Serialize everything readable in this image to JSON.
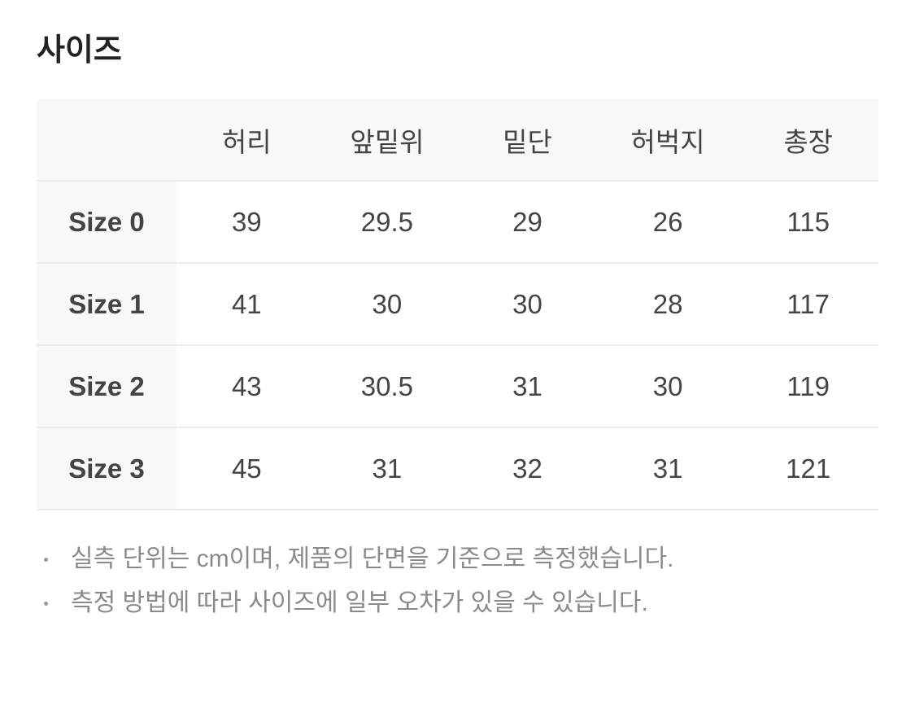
{
  "title": "사이즈",
  "table": {
    "headers": [
      "",
      "허리",
      "앞밑위",
      "밑단",
      "허벅지",
      "총장"
    ],
    "rows": [
      {
        "label": "Size 0",
        "values": [
          "39",
          "29.5",
          "29",
          "26",
          "115"
        ]
      },
      {
        "label": "Size 1",
        "values": [
          "41",
          "30",
          "30",
          "28",
          "117"
        ]
      },
      {
        "label": "Size 2",
        "values": [
          "43",
          "30.5",
          "31",
          "30",
          "119"
        ]
      },
      {
        "label": "Size 3",
        "values": [
          "45",
          "31",
          "32",
          "31",
          "121"
        ]
      }
    ]
  },
  "notes": [
    "실측 단위는 cm이며, 제품의 단면을 기준으로 측정했습니다.",
    "측정 방법에 따라 사이즈에 일부 오차가 있을 수 있습니다."
  ]
}
